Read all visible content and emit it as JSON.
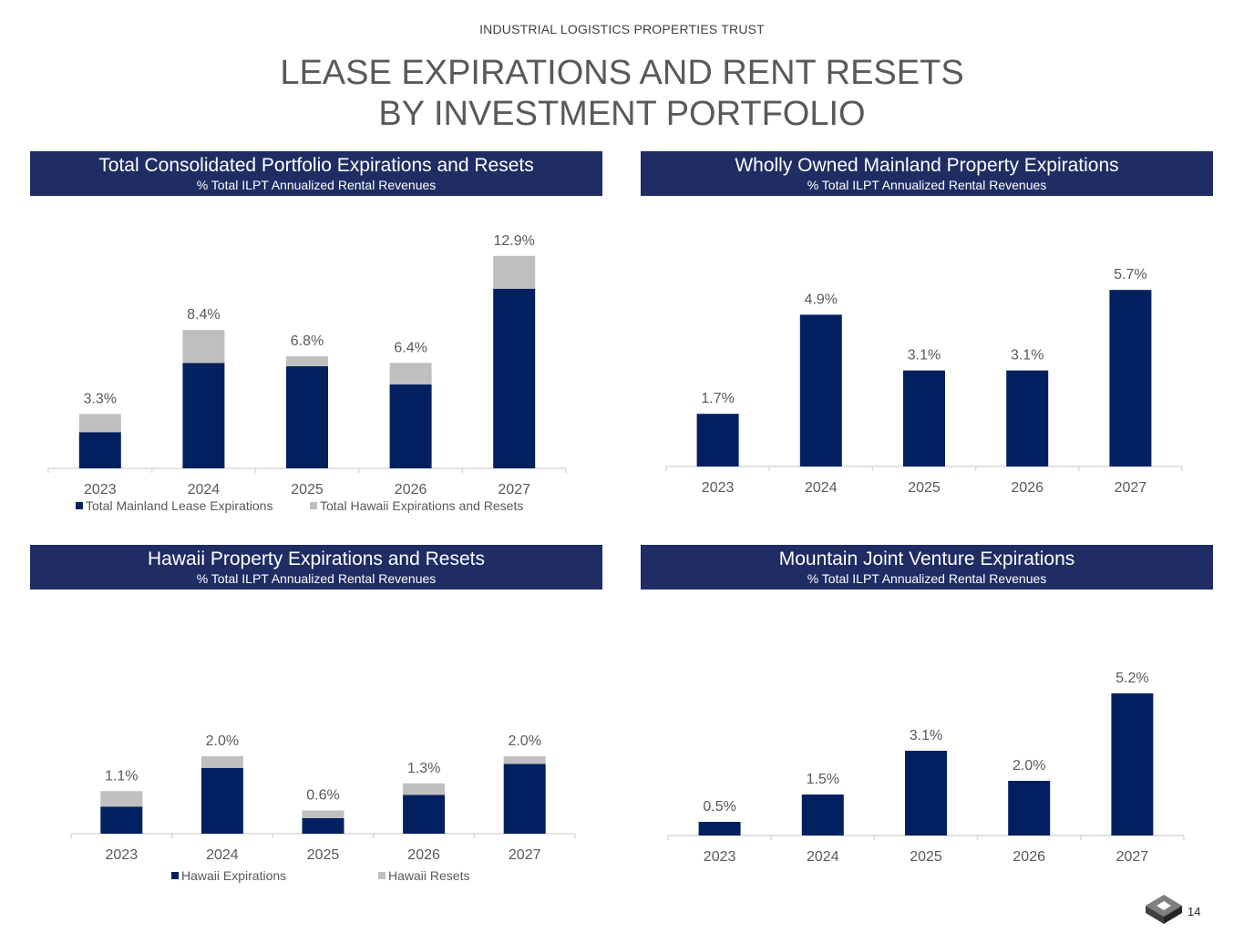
{
  "header": {
    "company": "INDUSTRIAL LOGISTICS PROPERTIES TRUST",
    "title_line1": "LEASE EXPIRATIONS AND RENT RESETS",
    "title_line2": "BY INVESTMENT PORTFOLIO"
  },
  "panels": [
    {
      "title": "Total Consolidated Portfolio Expirations and Resets",
      "subtitle": "% Total ILPT Annualized Rental Revenues"
    },
    {
      "title": "Wholly Owned Mainland Property Expirations",
      "subtitle": "% Total ILPT Annualized Rental Revenues"
    },
    {
      "title": "Hawaii Property Expirations and Resets",
      "subtitle": "% Total ILPT Annualized Rental Revenues"
    },
    {
      "title": "Mountain Joint Venture Expirations",
      "subtitle": "% Total ILPT Annualized Rental Revenues"
    }
  ],
  "colors": {
    "navy": "#002060",
    "gray": "#bfbfbf",
    "header_bg": "#1f2d64",
    "axis": "#d9d9d9"
  },
  "chart_data": [
    {
      "type": "bar",
      "stacked": true,
      "categories": [
        "2023",
        "2024",
        "2025",
        "2026",
        "2027"
      ],
      "series": [
        {
          "name": "Total Mainland Lease Expirations",
          "values": [
            2.2,
            6.4,
            6.2,
            5.1,
            10.9
          ],
          "color": "#002060"
        },
        {
          "name": "Total Hawaii Expirations and Resets",
          "values": [
            1.1,
            2.0,
            0.6,
            1.3,
            2.0
          ],
          "color": "#bfbfbf"
        }
      ],
      "data_labels": [
        "3.3%",
        "8.4%",
        "6.8%",
        "6.4%",
        "12.9%"
      ],
      "ylim": [
        0,
        13.5
      ],
      "legend": "bottom"
    },
    {
      "type": "bar",
      "categories": [
        "2023",
        "2024",
        "2025",
        "2026",
        "2027"
      ],
      "series": [
        {
          "values": [
            1.7,
            4.9,
            3.1,
            3.1,
            5.7
          ],
          "color": "#002060"
        }
      ],
      "data_labels": [
        "1.7%",
        "4.9%",
        "3.1%",
        "3.1%",
        "5.7%"
      ],
      "ylim": [
        0,
        6.0
      ]
    },
    {
      "type": "bar",
      "stacked": true,
      "categories": [
        "2023",
        "2024",
        "2025",
        "2026",
        "2027"
      ],
      "series": [
        {
          "name": "Hawaii Expirations",
          "values": [
            0.7,
            1.7,
            0.4,
            1.0,
            1.8
          ],
          "color": "#002060"
        },
        {
          "name": "Hawaii Resets",
          "values": [
            0.4,
            0.3,
            0.2,
            0.3,
            0.2
          ],
          "color": "#bfbfbf"
        }
      ],
      "data_labels": [
        "1.1%",
        "2.0%",
        "0.6%",
        "1.3%",
        "2.0%"
      ],
      "ylim": [
        0,
        6.0
      ],
      "legend": "bottom"
    },
    {
      "type": "bar",
      "categories": [
        "2023",
        "2024",
        "2025",
        "2026",
        "2027"
      ],
      "series": [
        {
          "values": [
            0.5,
            1.5,
            3.1,
            2.0,
            5.2
          ],
          "color": "#002060"
        }
      ],
      "data_labels": [
        "0.5%",
        "1.5%",
        "3.1%",
        "2.0%",
        "5.2%"
      ],
      "ylim": [
        0,
        5.5
      ]
    }
  ],
  "footer": {
    "page_number": "14",
    "logo_icon": "ilpt-logo-icon"
  }
}
